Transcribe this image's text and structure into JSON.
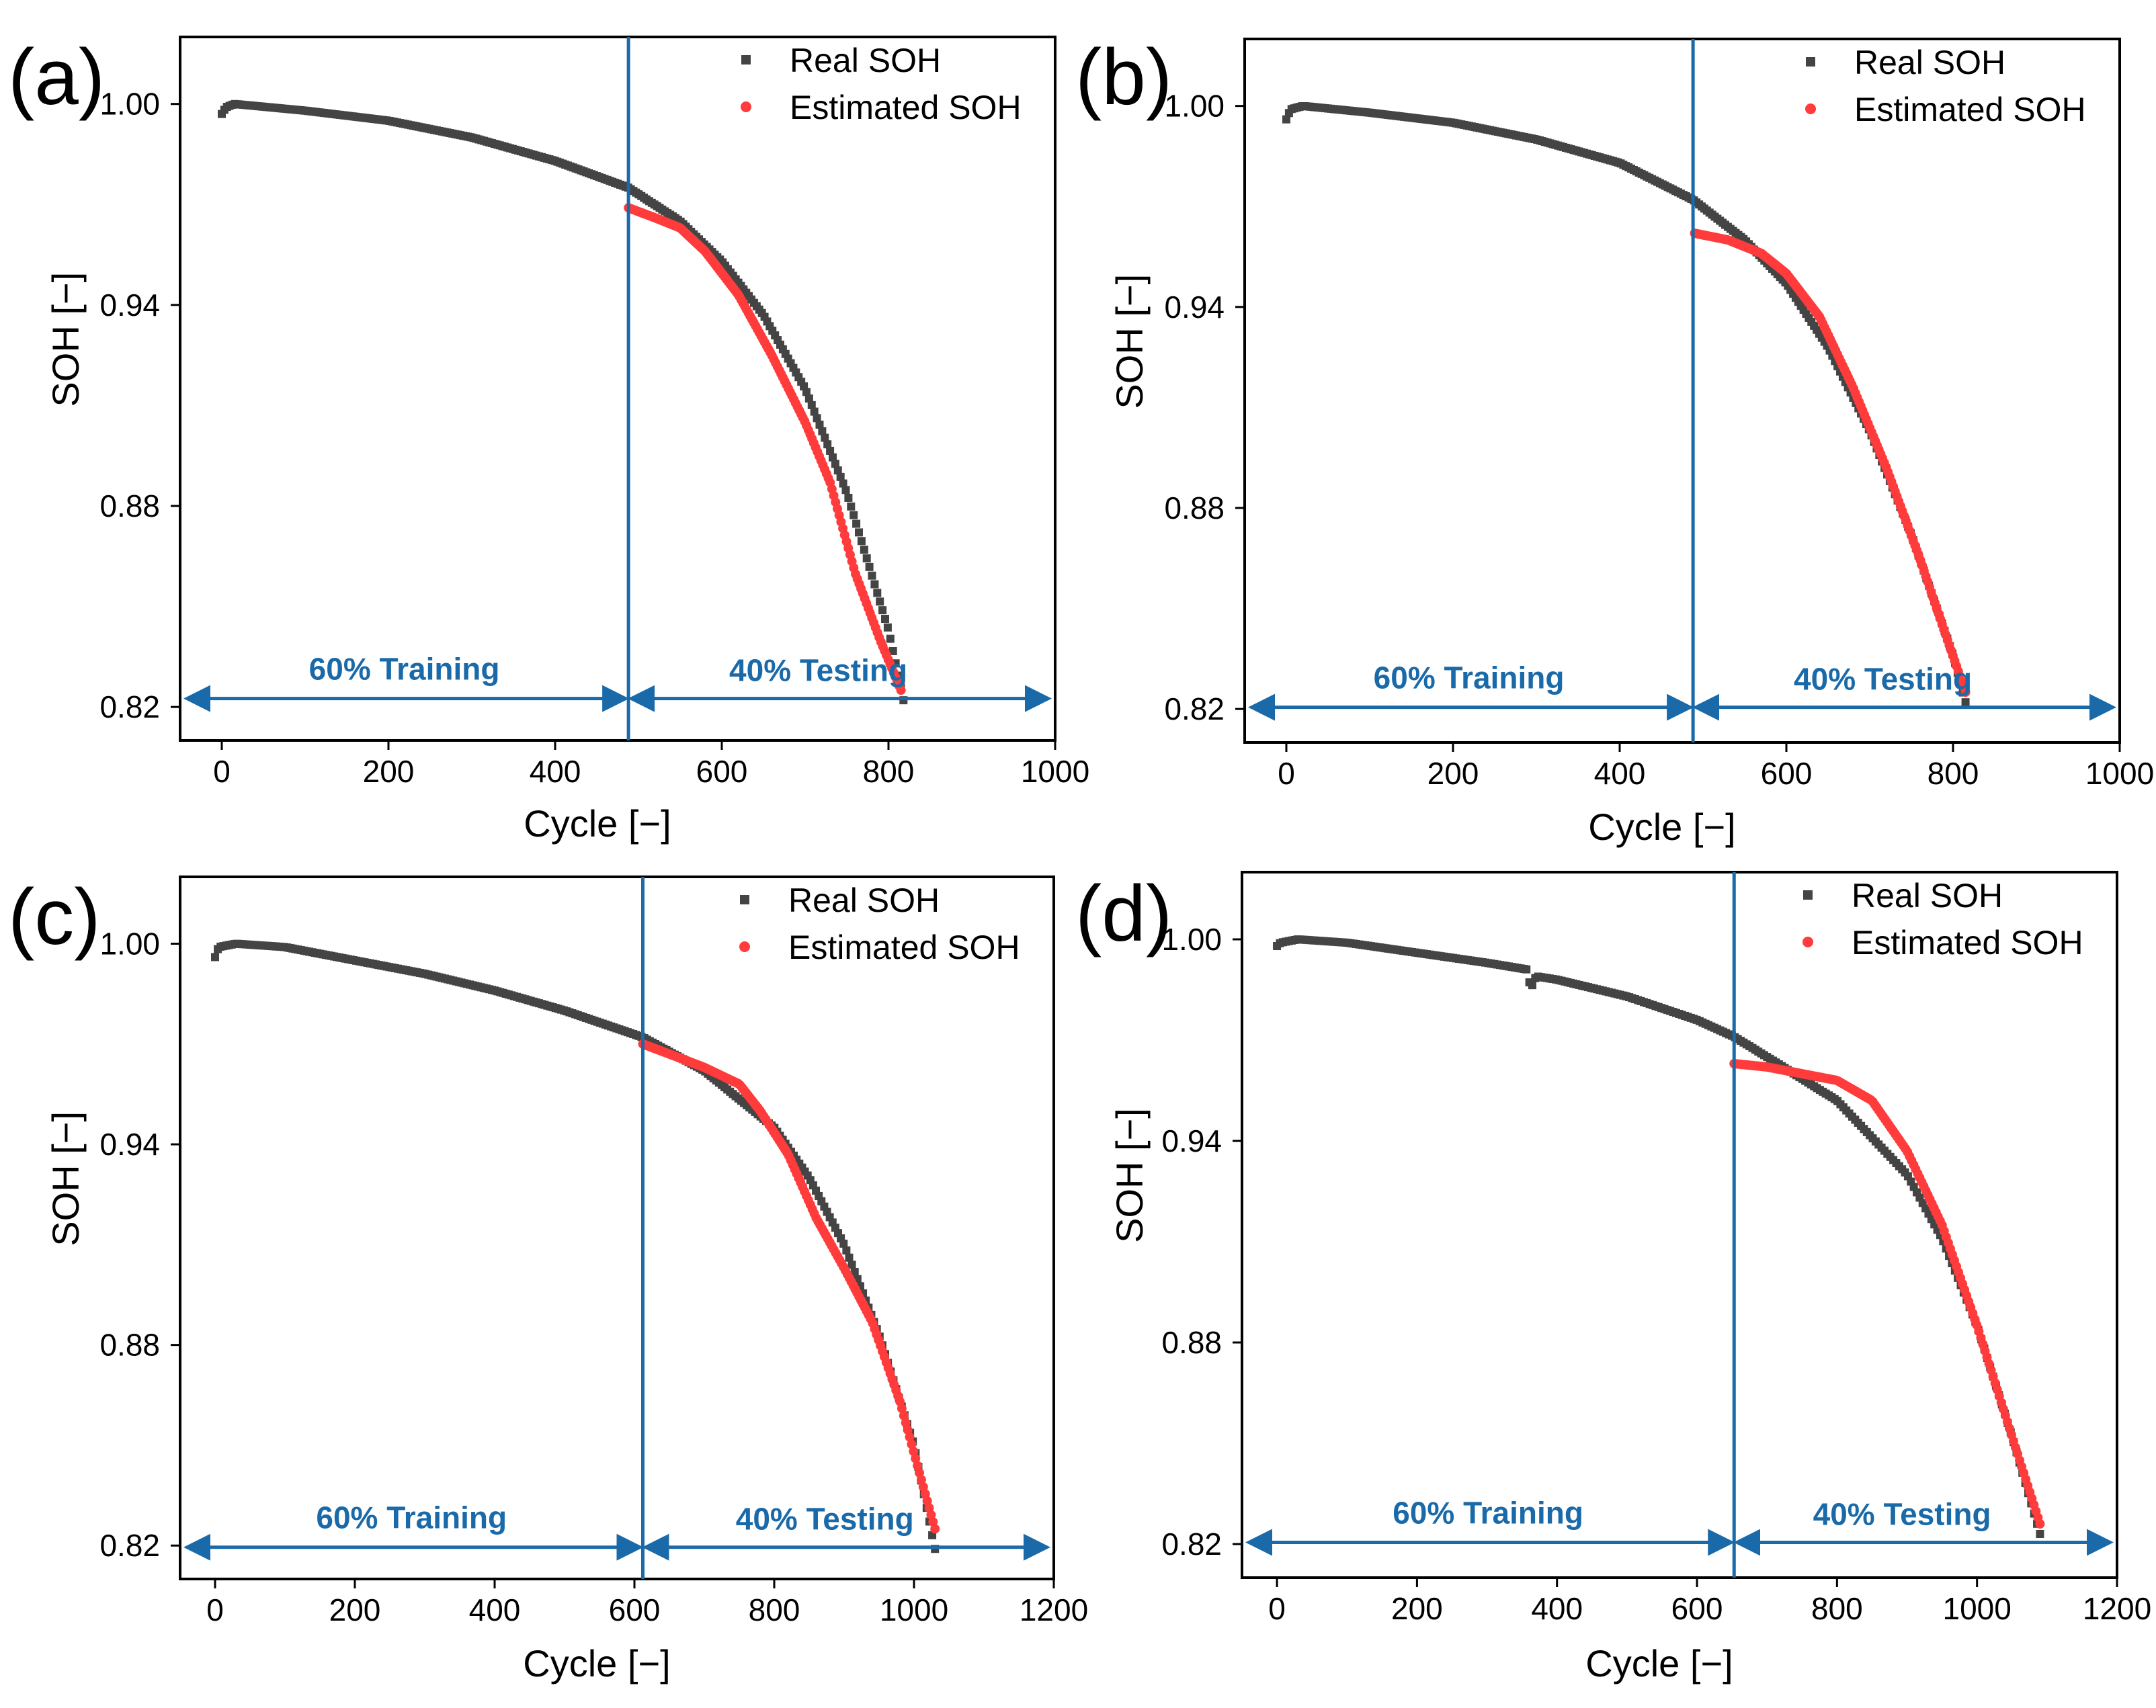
{
  "colors": {
    "real": "#444444",
    "estimated": "#ff3b3b",
    "accent": "#1a6aa9",
    "axis": "#000000"
  },
  "chart_data": [
    {
      "type": "scatter",
      "panel": "(a)",
      "xlabel": "Cycle [−]",
      "ylabel": "SOH [−]",
      "xlim": [
        -50,
        1000
      ],
      "ylim": [
        0.81,
        1.02
      ],
      "xticks": [
        0,
        200,
        400,
        600,
        800,
        1000
      ],
      "yticks": [
        0.82,
        0.88,
        0.94,
        1.0
      ],
      "ytick_labels": [
        "0.82",
        "0.88",
        "0.94",
        "1.00"
      ],
      "legend": [
        "Real SOH",
        "Estimated SOH"
      ],
      "split_cycle": 488,
      "split_labels": [
        "60% Training",
        "40% Testing"
      ],
      "split_arrow_y": 0.8225,
      "series": [
        {
          "name": "Real SOH",
          "x": [
            0,
            5,
            15,
            100,
            200,
            300,
            400,
            488,
            550,
            600,
            650,
            700,
            750,
            800,
            818
          ],
          "y": [
            0.997,
            0.999,
            1.0,
            0.998,
            0.995,
            0.99,
            0.983,
            0.975,
            0.965,
            0.953,
            0.937,
            0.915,
            0.884,
            0.843,
            0.822
          ]
        },
        {
          "name": "Estimated SOH",
          "x": [
            488,
            520,
            550,
            580,
            620,
            660,
            700,
            730,
            760,
            790,
            815
          ],
          "y": [
            0.969,
            0.966,
            0.963,
            0.956,
            0.943,
            0.925,
            0.905,
            0.887,
            0.86,
            0.84,
            0.825
          ]
        }
      ]
    },
    {
      "type": "scatter",
      "panel": "(b)",
      "xlabel": "Cycle [−]",
      "ylabel": "SOH [−]",
      "xlim": [
        -50,
        1000
      ],
      "ylim": [
        0.81,
        1.02
      ],
      "xticks": [
        0,
        200,
        400,
        600,
        800,
        1000
      ],
      "yticks": [
        0.82,
        0.88,
        0.94,
        1.0
      ],
      "ytick_labels": [
        "0.82",
        "0.88",
        "0.94",
        "1.00"
      ],
      "legend": [
        "Real SOH",
        "Estimated SOH"
      ],
      "split_cycle": 488,
      "split_labels": [
        "60% Training",
        "40% Testing"
      ],
      "split_arrow_y": 0.8205,
      "series": [
        {
          "name": "Real SOH",
          "x": [
            0,
            5,
            20,
            100,
            200,
            300,
            400,
            488,
            550,
            600,
            650,
            700,
            750,
            800,
            815
          ],
          "y": [
            0.996,
            0.999,
            1.0,
            0.998,
            0.995,
            0.99,
            0.983,
            0.972,
            0.96,
            0.947,
            0.928,
            0.903,
            0.872,
            0.836,
            0.822
          ]
        },
        {
          "name": "Estimated SOH",
          "x": [
            490,
            530,
            570,
            600,
            640,
            680,
            720,
            760,
            790,
            815
          ],
          "y": [
            0.962,
            0.96,
            0.956,
            0.95,
            0.937,
            0.916,
            0.892,
            0.865,
            0.843,
            0.825
          ]
        }
      ]
    },
    {
      "type": "scatter",
      "panel": "(c)",
      "xlabel": "Cycle [−]",
      "ylabel": "SOH [−]",
      "xlim": [
        -50,
        1200
      ],
      "ylim": [
        0.81,
        1.02
      ],
      "xticks": [
        0,
        200,
        400,
        600,
        800,
        1000,
        1200
      ],
      "yticks": [
        0.82,
        0.88,
        0.94,
        1.0
      ],
      "ytick_labels": [
        "0.82",
        "0.88",
        "0.94",
        "1.00"
      ],
      "legend": [
        "Real SOH",
        "Estimated SOH"
      ],
      "split_cycle": 612,
      "split_labels": [
        "60% Training",
        "40% Testing"
      ],
      "split_arrow_y": 0.8195,
      "series": [
        {
          "name": "Real SOH",
          "x": [
            0,
            5,
            30,
            100,
            200,
            300,
            400,
            500,
            612,
            700,
            800,
            850,
            900,
            950,
            1000,
            1030
          ],
          "y": [
            0.996,
            0.999,
            1.0,
            0.999,
            0.995,
            0.991,
            0.986,
            0.98,
            0.972,
            0.962,
            0.945,
            0.93,
            0.91,
            0.883,
            0.85,
            0.819
          ]
        },
        {
          "name": "Estimated SOH",
          "x": [
            612,
            650,
            700,
            750,
            780,
            820,
            860,
            900,
            940,
            980,
            1010,
            1030
          ],
          "y": [
            0.97,
            0.967,
            0.963,
            0.958,
            0.95,
            0.937,
            0.918,
            0.903,
            0.887,
            0.863,
            0.84,
            0.825
          ]
        }
      ]
    },
    {
      "type": "scatter",
      "panel": "(d)",
      "xlabel": "Cycle [−]",
      "ylabel": "SOH [−]",
      "xlim": [
        -50,
        1200
      ],
      "ylim": [
        0.81,
        1.02
      ],
      "xticks": [
        0,
        200,
        400,
        600,
        800,
        1000,
        1200
      ],
      "yticks": [
        0.82,
        0.88,
        0.94,
        1.0
      ],
      "ytick_labels": [
        "0.82",
        "0.88",
        "0.94",
        "1.00"
      ],
      "legend": [
        "Real SOH",
        "Estimated SOH"
      ],
      "split_cycle": 653,
      "split_labels": [
        "60% Training",
        "40% Testing"
      ],
      "split_arrow_y": 0.8205,
      "series": [
        {
          "name": "Real SOH",
          "x": [
            0,
            5,
            30,
            100,
            200,
            300,
            358,
            362,
            370,
            400,
            500,
            600,
            653,
            700,
            800,
            900,
            950,
            1000,
            1050,
            1090
          ],
          "y": [
            0.998,
            0.999,
            1.0,
            0.999,
            0.996,
            0.993,
            0.991,
            0.985,
            0.989,
            0.988,
            0.983,
            0.976,
            0.971,
            0.965,
            0.952,
            0.93,
            0.911,
            0.885,
            0.852,
            0.823
          ]
        },
        {
          "name": "Estimated SOH",
          "x": [
            653,
            700,
            750,
            800,
            850,
            900,
            950,
            1000,
            1050,
            1090
          ],
          "y": [
            0.963,
            0.962,
            0.96,
            0.958,
            0.952,
            0.937,
            0.915,
            0.885,
            0.852,
            0.826
          ]
        }
      ]
    }
  ]
}
